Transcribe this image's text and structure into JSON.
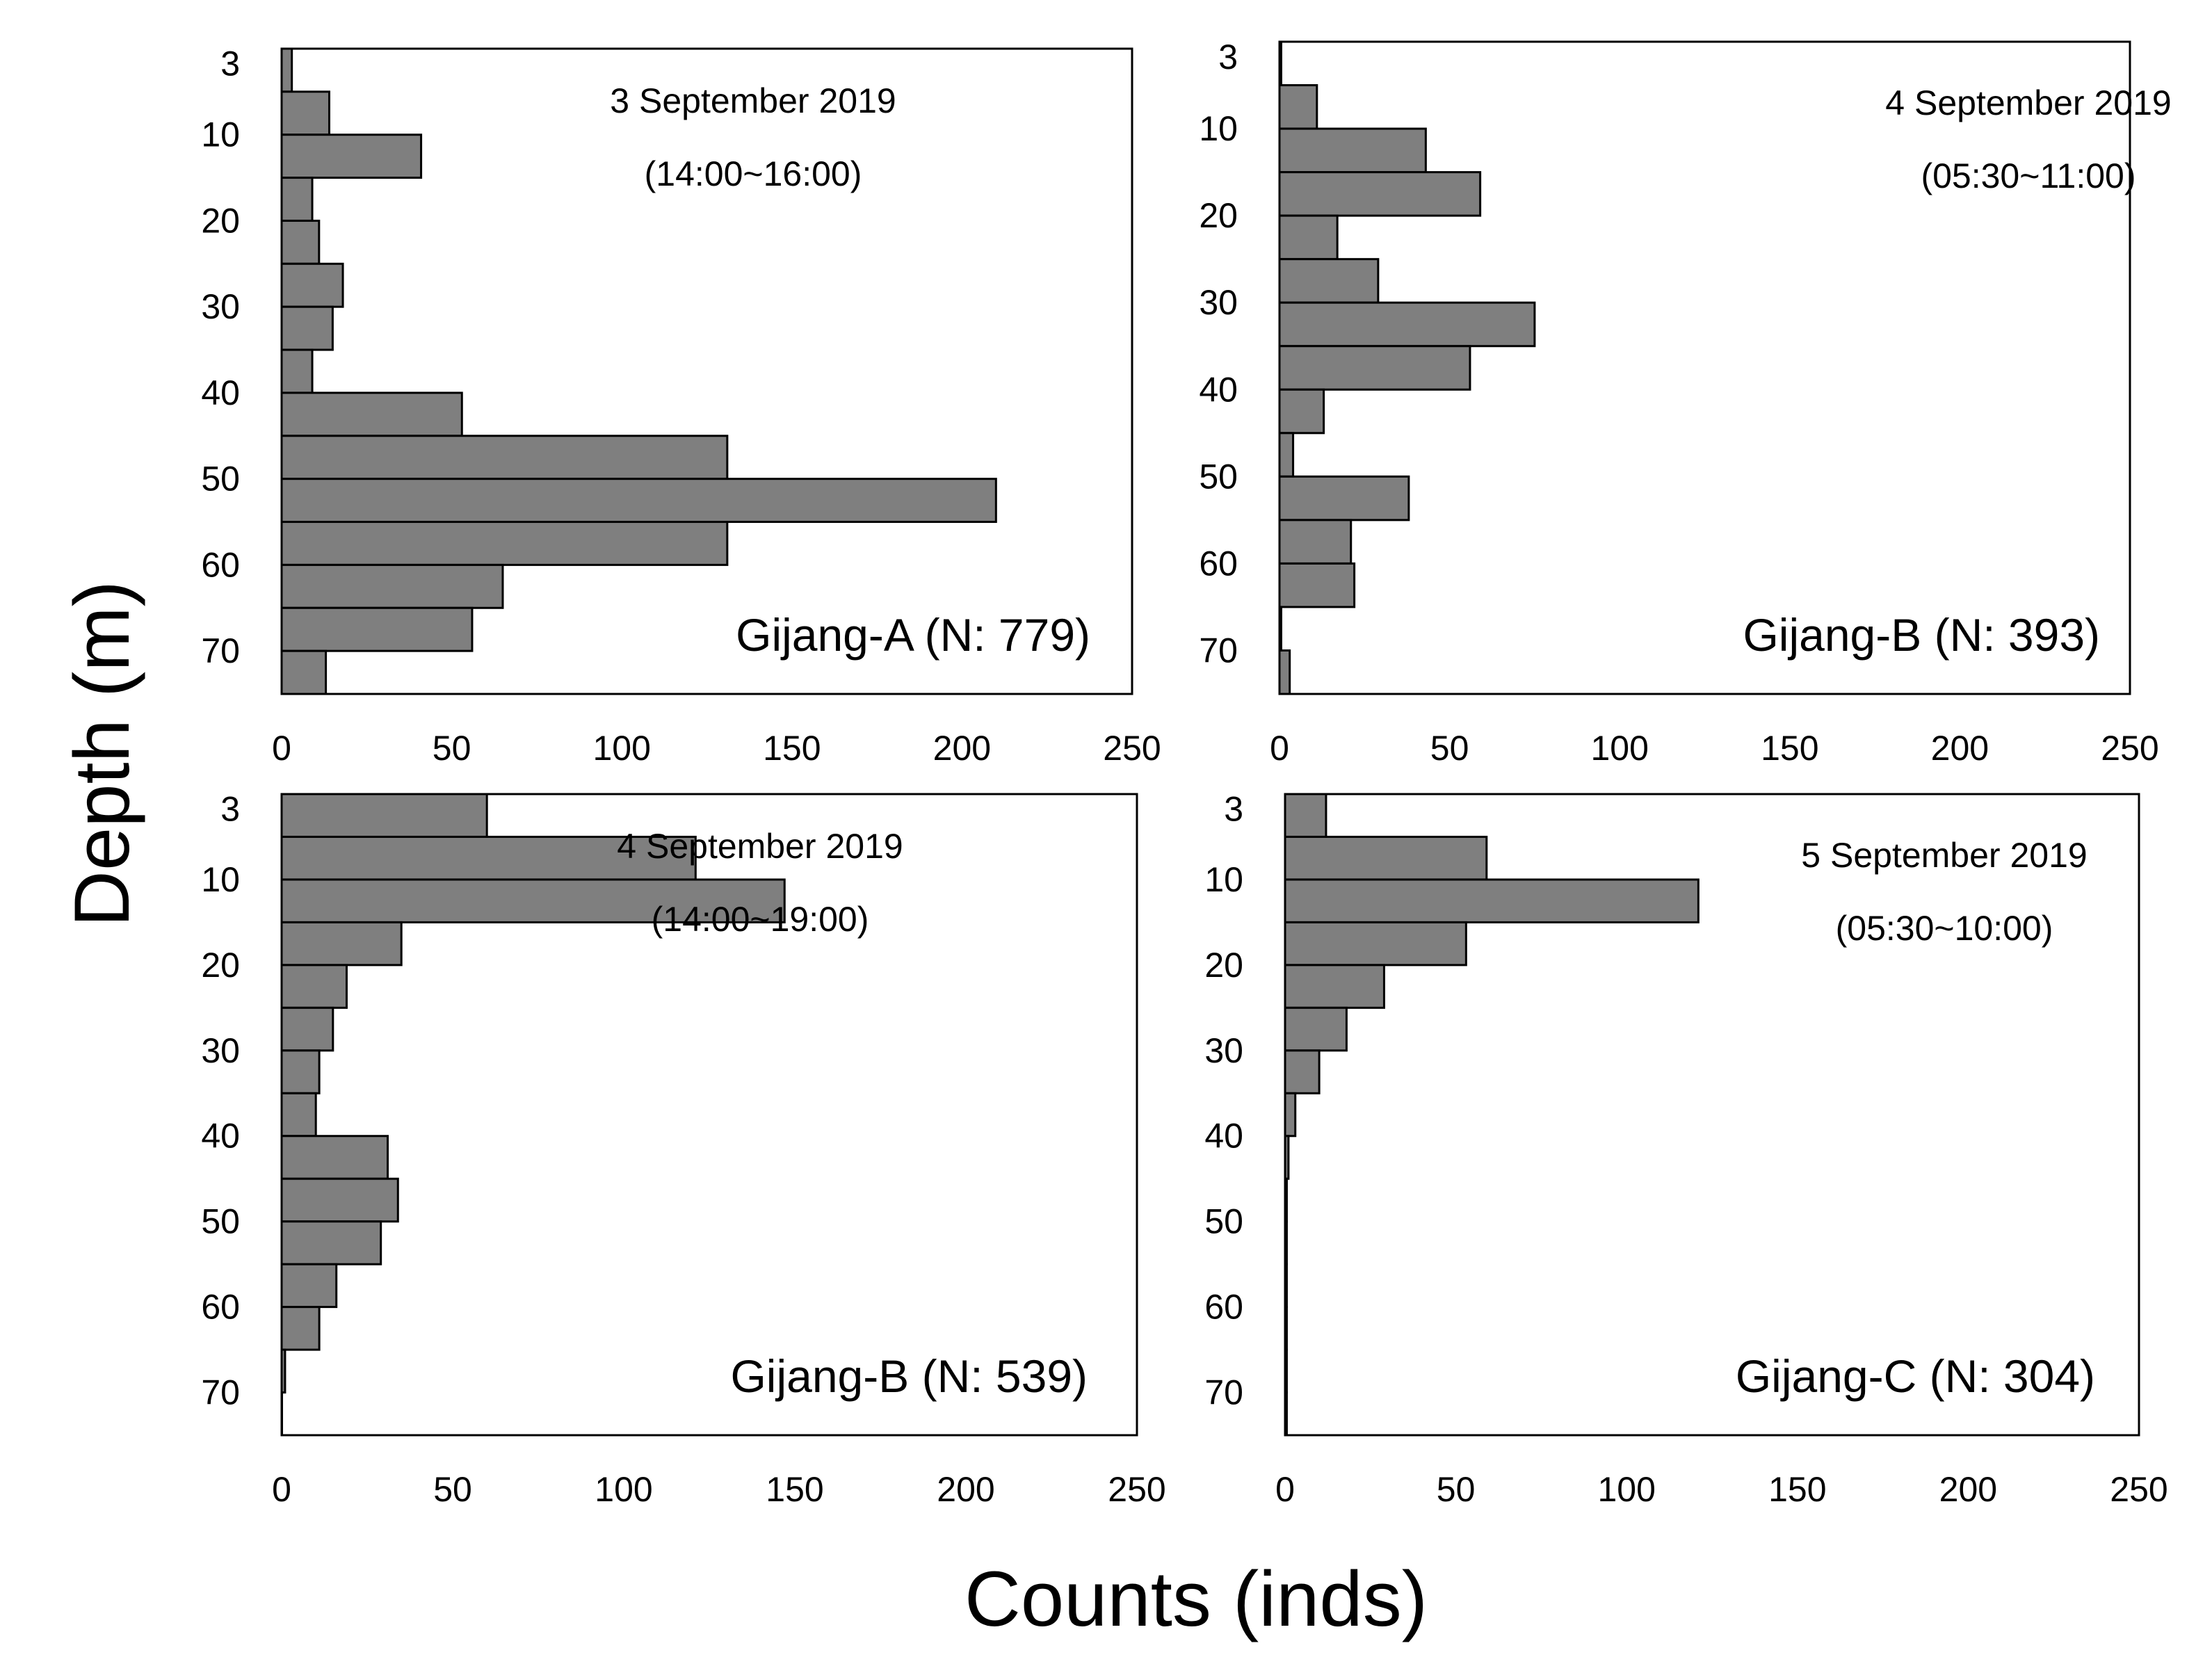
{
  "figure": {
    "xlabel": "Counts (inds)",
    "ylabel": "Depth (m)"
  },
  "colors": {
    "bar_fill": "#7f7f7f",
    "bar_stroke": "#000000",
    "frame": "#000000"
  },
  "chart_data": [
    {
      "type": "bar",
      "orientation": "horizontal",
      "title": "Gijang-A (N: 779)",
      "date": "3 September 2019",
      "time": "(14:00~16:00)",
      "xlim": [
        0,
        250
      ],
      "xticks": [
        "0",
        "50",
        "100",
        "150",
        "200",
        "250"
      ],
      "yticks": [
        "3",
        "10",
        "20",
        "30",
        "40",
        "50",
        "60",
        "70"
      ],
      "depth_bins": [
        "0-5",
        "5-10",
        "10-15",
        "15-20",
        "20-25",
        "25-30",
        "30-35",
        "35-40",
        "40-45",
        "45-50",
        "50-55",
        "55-60",
        "60-65",
        "65-70",
        "70-75"
      ],
      "values": [
        3,
        14,
        41,
        9,
        11,
        18,
        15,
        9,
        53,
        131,
        210,
        131,
        65,
        56,
        13
      ]
    },
    {
      "type": "bar",
      "orientation": "horizontal",
      "title": "Gijang-B (N: 393)",
      "date": "4 September 2019",
      "time": "(05:30~11:00)",
      "xlim": [
        0,
        250
      ],
      "xticks": [
        "0",
        "50",
        "100",
        "150",
        "200",
        "250"
      ],
      "yticks": [
        "3",
        "10",
        "20",
        "30",
        "40",
        "50",
        "60",
        "70"
      ],
      "depth_bins": [
        "0-5",
        "5-10",
        "10-15",
        "15-20",
        "20-25",
        "25-30",
        "30-35",
        "35-40",
        "40-45",
        "45-50",
        "50-55",
        "55-60",
        "60-65",
        "65-70",
        "70-75"
      ],
      "values": [
        0.5,
        11,
        43,
        59,
        17,
        29,
        75,
        56,
        13,
        4,
        38,
        21,
        22,
        0.5,
        3
      ]
    },
    {
      "type": "bar",
      "orientation": "horizontal",
      "title": "Gijang-B (N: 539)",
      "date": "4 September 2019",
      "time": "(14:00~19:00)",
      "xlim": [
        0,
        250
      ],
      "xticks": [
        "0",
        "50",
        "100",
        "150",
        "200",
        "250"
      ],
      "yticks": [
        "3",
        "10",
        "20",
        "30",
        "40",
        "50",
        "60",
        "70"
      ],
      "depth_bins": [
        "0-5",
        "5-10",
        "10-15",
        "15-20",
        "20-25",
        "25-30",
        "30-35",
        "35-40",
        "40-45",
        "45-50",
        "50-55",
        "55-60",
        "60-65",
        "65-70",
        "70-75"
      ],
      "values": [
        60,
        121,
        147,
        35,
        19,
        15,
        11,
        10,
        31,
        34,
        29,
        16,
        11,
        1,
        0
      ]
    },
    {
      "type": "bar",
      "orientation": "horizontal",
      "title": "Gijang-C (N: 304)",
      "date": "5 September 2019",
      "time": "(05:30~10:00)",
      "xlim": [
        0,
        250
      ],
      "xticks": [
        "0",
        "50",
        "100",
        "150",
        "200",
        "250"
      ],
      "yticks": [
        "3",
        "10",
        "20",
        "30",
        "40",
        "50",
        "60",
        "70"
      ],
      "depth_bins": [
        "0-5",
        "5-10",
        "10-15",
        "15-20",
        "20-25",
        "25-30",
        "30-35",
        "35-40",
        "40-45",
        "45-50",
        "50-55",
        "55-60",
        "60-65",
        "65-70",
        "70-75"
      ],
      "values": [
        12,
        59,
        121,
        53,
        29,
        18,
        10,
        3,
        1,
        0.5,
        0.5,
        0.5,
        0.5,
        0.5,
        0.5
      ]
    }
  ]
}
